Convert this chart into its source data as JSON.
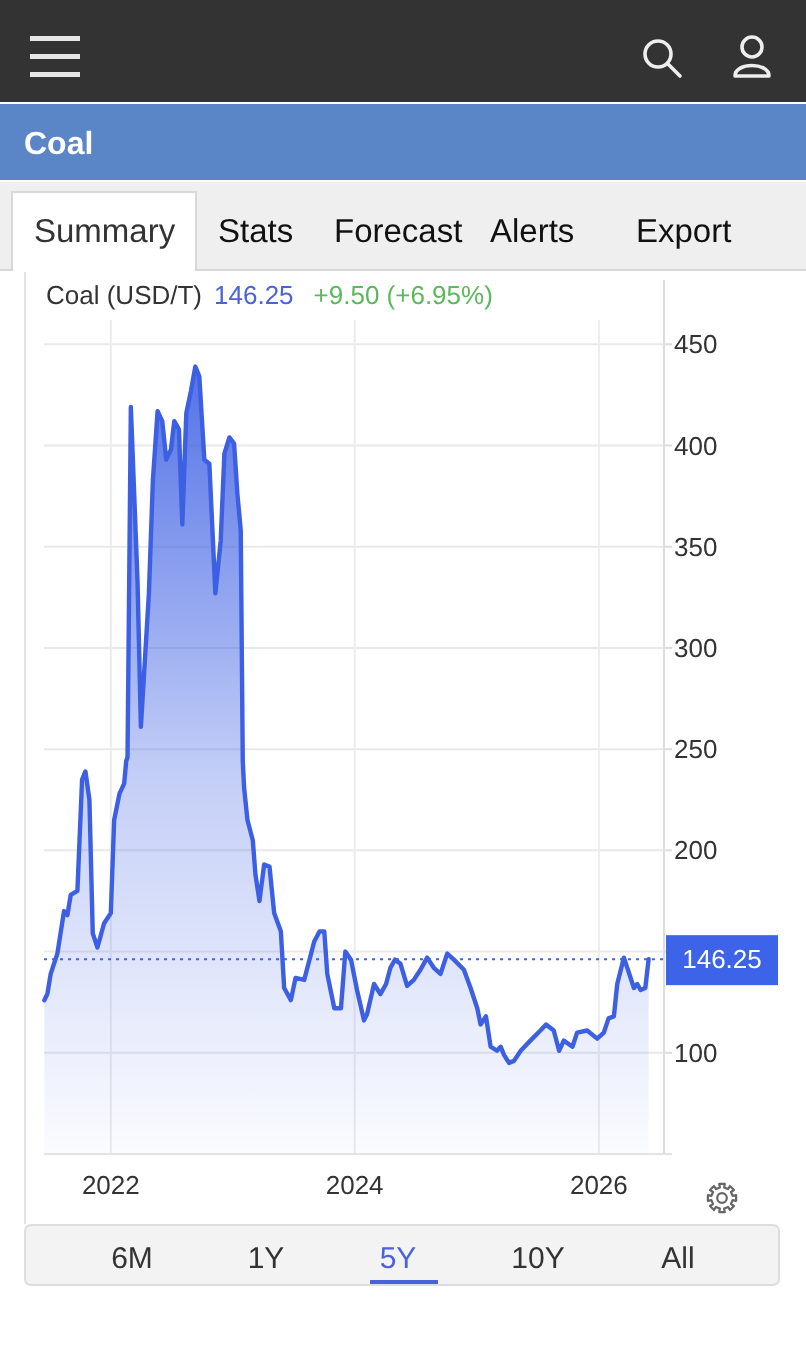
{
  "chart_data": {
    "type": "area",
    "title": "Coal",
    "subtitle": "Coal (USD/T)",
    "annotations": [
      "146.25",
      "+9.50 (+6.95%)",
      "Summary",
      "Stats",
      "Forecast",
      "Alerts",
      "Export",
      "6M",
      "1Y",
      "5Y",
      "10Y",
      "All"
    ],
    "x": [
      "2021-06-16",
      "2021-06-25",
      "2021-07-05",
      "2021-07-25",
      "2021-08-14",
      "2021-08-24",
      "2021-09-03",
      "2021-09-23",
      "2021-10-07",
      "2021-10-17",
      "2021-10-29",
      "2021-11-08",
      "2021-11-22",
      "2021-12-12",
      "2022-01-01",
      "2022-01-11",
      "2022-01-27",
      "2022-02-10",
      "2022-02-16",
      "2022-02-20",
      "2022-03-02",
      "2022-03-22",
      "2022-04-01",
      "2022-04-25",
      "2022-05-07",
      "2022-05-21",
      "2022-06-04",
      "2022-06-16",
      "2022-06-30",
      "2022-07-10",
      "2022-07-24",
      "2022-08-03",
      "2022-08-15",
      "2022-08-29",
      "2022-09-11",
      "2022-09-23",
      "2022-10-08",
      "2022-10-23",
      "2022-11-10",
      "2022-11-26",
      "2022-12-07",
      "2022-12-22",
      "2023-01-05",
      "2023-01-15",
      "2023-01-25",
      "2023-01-31",
      "2023-02-04",
      "2023-02-14",
      "2023-03-02",
      "2023-03-10",
      "2023-03-22",
      "2023-04-05",
      "2023-04-21",
      "2023-05-05",
      "2023-05-25",
      "2023-06-04",
      "2023-06-24",
      "2023-07-08",
      "2023-08-03",
      "2023-09-02",
      "2023-09-18",
      "2023-10-02",
      "2023-10-11",
      "2023-11-01",
      "2023-11-21",
      "2023-12-04",
      "2023-12-21",
      "2024-01-08",
      "2024-01-29",
      "2024-02-07",
      "2024-02-28",
      "2024-03-18",
      "2024-04-04",
      "2024-04-17",
      "2024-05-01",
      "2024-05-17",
      "2024-06-06",
      "2024-06-26",
      "2024-07-16",
      "2024-08-05",
      "2024-08-25",
      "2024-09-14",
      "2024-10-04",
      "2024-10-24",
      "2024-11-23",
      "2024-12-13",
      "2025-01-02",
      "2025-01-12",
      "2025-01-28",
      "2025-02-11",
      "2025-03-02",
      "2025-03-13",
      "2025-03-23",
      "2025-04-07",
      "2025-04-22",
      "2025-05-12",
      "2025-06-10",
      "2025-07-10",
      "2025-07-27",
      "2025-08-19",
      "2025-09-04",
      "2025-09-18",
      "2025-10-14",
      "2025-10-28",
      "2025-11-27",
      "2025-12-27",
      "2026-01-16",
      "2026-01-30",
      "2026-02-15",
      "2026-02-25",
      "2026-03-17",
      "2026-03-27",
      "2026-04-16",
      "2026-04-26",
      "2026-05-06",
      "2026-05-20",
      "2026-05-30"
    ],
    "series": [
      {
        "color": "#3c5fe3",
        "values": [
          126,
          129,
          139,
          149,
          170,
          168,
          178,
          180,
          235,
          239,
          225,
          159,
          152,
          164,
          169,
          215,
          228,
          233,
          244,
          246,
          419,
          333,
          261,
          327,
          383,
          417,
          412,
          393,
          398,
          412,
          408,
          361,
          416,
          427,
          439,
          434,
          393,
          391,
          327,
          353,
          396,
          404,
          401,
          376,
          358,
          244,
          231,
          215,
          205,
          188,
          175,
          193,
          192,
          169,
          160,
          132,
          126,
          137,
          136,
          155,
          160,
          160,
          139,
          122,
          122,
          150,
          146,
          131,
          116,
          119,
          134,
          129,
          134,
          142,
          146,
          144,
          133,
          136,
          141,
          147,
          142,
          139,
          149,
          146,
          141,
          132,
          122,
          114,
          118,
          103,
          101,
          103,
          99,
          95,
          96,
          101,
          106,
          111,
          114,
          111,
          101,
          106,
          103,
          110,
          111,
          107,
          110,
          117,
          118,
          134,
          147,
          142,
          132,
          134,
          131,
          132,
          146.25
        ]
      }
    ],
    "xlim": [
      "2021-06-15",
      "2026-07-15"
    ],
    "xticks": [
      "2022",
      "2024",
      "2026"
    ],
    "ylim": [
      50,
      462
    ],
    "yticks": [
      100,
      {
        "value": 150,
        "label": null
      },
      200,
      250,
      300,
      350,
      400,
      450
    ],
    "grid": true,
    "line_style": "solid",
    "ref_lines": [
      {
        "axis": "y",
        "value": 146.25,
        "label": "146.25",
        "color": "#3d63e8",
        "line_style": "dotted"
      }
    ]
  }
}
